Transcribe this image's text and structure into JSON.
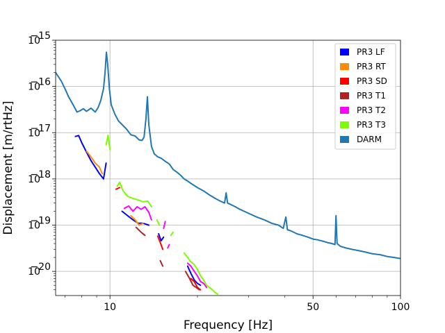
{
  "chart_data": {
    "type": "line",
    "title": "",
    "xlabel": "Frequency [Hz]",
    "ylabel": "Displacement [m/rtHz]",
    "x_scale": "log",
    "y_scale": "log",
    "xlim": [
      6.5,
      100
    ],
    "ylim": [
      3e-21,
      1e-15
    ],
    "grid": true,
    "legend_position": "top-right",
    "x_ticks": [
      {
        "value": 10,
        "label": "10"
      },
      {
        "value": 50,
        "label": "50"
      },
      {
        "value": 100,
        "label": "100"
      }
    ],
    "y_ticks": [
      {
        "value": 1e-20,
        "base": "10",
        "exp": "−20"
      },
      {
        "value": 1e-19,
        "base": "10",
        "exp": "−19"
      },
      {
        "value": 1e-18,
        "base": "10",
        "exp": "−18"
      },
      {
        "value": 1e-17,
        "base": "10",
        "exp": "−17"
      },
      {
        "value": 1e-16,
        "base": "10",
        "exp": "−16"
      },
      {
        "value": 1e-15,
        "base": "10",
        "exp": "−15"
      }
    ],
    "series": [
      {
        "name": "PR3 LF",
        "color": "#0000ff",
        "segments": [
          [
            [
              7.6,
              8.3e-18
            ],
            [
              7.8,
              8.7e-18
            ],
            [
              8.0,
              6e-18
            ],
            [
              8.3,
              3.8e-18
            ],
            [
              8.6,
              2.5e-18
            ],
            [
              8.9,
              1.8e-18
            ],
            [
              9.2,
              1.3e-18
            ],
            [
              9.5,
              1e-18
            ],
            [
              9.7,
              2.2e-18
            ]
          ],
          [
            [
              11.0,
              2e-19
            ],
            [
              11.5,
              1.6e-19
            ],
            [
              12.0,
              1.3e-19
            ],
            [
              12.5,
              1.1e-19
            ],
            [
              13.0,
              1.1e-19
            ],
            [
              13.6,
              1e-19
            ]
          ],
          [
            [
              14.7,
              6.5e-20
            ],
            [
              15.0,
              4.6e-20
            ],
            [
              15.3,
              5.5e-20
            ]
          ],
          [
            [
              18.5,
              1.3e-20
            ],
            [
              19.0,
              9e-21
            ],
            [
              19.5,
              6.5e-21
            ],
            [
              20.0,
              5.5e-21
            ],
            [
              20.5,
              5e-21
            ]
          ]
        ]
      },
      {
        "name": "PR3 RT",
        "color": "#ff8c00",
        "segments": [
          [
            [
              8.3,
              4e-18
            ],
            [
              8.6,
              3e-18
            ],
            [
              8.9,
              2.2e-18
            ],
            [
              9.2,
              1.8e-18
            ],
            [
              9.4,
              1.3e-18
            ]
          ],
          [
            [
              11.8,
              1.6e-19
            ],
            [
              12.2,
              1.3e-19
            ],
            [
              12.6,
              1e-19
            ],
            [
              13.0,
              1.1e-19
            ]
          ]
        ]
      },
      {
        "name": "PR3 SD",
        "color": "#ff0000",
        "segments": [
          [
            [
              10.5,
              6e-19
            ],
            [
              10.8,
              6.5e-19
            ]
          ],
          [
            [
              14.6,
              5.8e-20
            ],
            [
              14.9,
              4.2e-20
            ],
            [
              15.2,
              3e-20
            ]
          ],
          [
            [
              19.0,
              7e-21
            ],
            [
              19.5,
              6e-21
            ],
            [
              20.0,
              4.5e-21
            ],
            [
              20.5,
              4e-21
            ]
          ]
        ]
      },
      {
        "name": "PR3 T1",
        "color": "#b22222",
        "segments": [
          [
            [
              12.3,
              9e-20
            ],
            [
              12.8,
              7e-20
            ],
            [
              13.2,
              6e-20
            ]
          ],
          [
            [
              14.9,
              1.7e-20
            ],
            [
              15.2,
              1.3e-20
            ]
          ],
          [
            [
              18.2,
              1e-20
            ],
            [
              18.8,
              7e-21
            ],
            [
              19.3,
              5e-21
            ],
            [
              19.8,
              4.5e-21
            ],
            [
              20.3,
              4e-21
            ]
          ]
        ]
      },
      {
        "name": "PR3 T2",
        "color": "#ff00ff",
        "segments": [
          [
            [
              11.2,
              2.3e-19
            ],
            [
              11.6,
              2.6e-19
            ],
            [
              12.0,
              2e-19
            ],
            [
              12.4,
              2.5e-19
            ],
            [
              12.8,
              2.2e-19
            ],
            [
              13.2,
              2.5e-19
            ],
            [
              13.6,
              1.9e-19
            ],
            [
              13.9,
              1.3e-19
            ]
          ],
          [
            [
              15.3,
              8.5e-20
            ],
            [
              15.5,
              1.2e-19
            ]
          ],
          [
            [
              15.8,
              3.2e-20
            ],
            [
              16.0,
              3.8e-20
            ]
          ],
          [
            [
              18.5,
              1.5e-20
            ],
            [
              19.0,
              1.3e-20
            ],
            [
              19.5,
              1e-20
            ],
            [
              20.0,
              8e-21
            ],
            [
              20.5,
              6e-21
            ],
            [
              21.0,
              5.5e-21
            ],
            [
              21.5,
              4.5e-21
            ]
          ]
        ]
      },
      {
        "name": "PR3 T3",
        "color": "#7cfc00",
        "segments": [
          [
            [
              9.7,
              5.5e-18
            ],
            [
              9.85,
              8.8e-18
            ],
            [
              10.0,
              4.3e-18
            ]
          ],
          [
            [
              10.6,
              7e-19
            ],
            [
              10.8,
              8.5e-19
            ],
            [
              11.1,
              5.5e-19
            ],
            [
              11.5,
              4.2e-19
            ],
            [
              12.0,
              3.8e-19
            ],
            [
              12.5,
              3.5e-19
            ],
            [
              13.0,
              3.2e-19
            ],
            [
              13.5,
              3.3e-19
            ],
            [
              13.9,
              2.5e-19
            ]
          ],
          [
            [
              14.5,
              1.3e-19
            ],
            [
              14.8,
              1e-19
            ]
          ],
          [
            [
              16.2,
              6e-20
            ],
            [
              16.5,
              7e-20
            ]
          ],
          [
            [
              18.0,
              2.5e-20
            ],
            [
              18.5,
              2e-20
            ],
            [
              19.0,
              1.6e-20
            ],
            [
              19.5,
              1.4e-20
            ],
            [
              20.0,
              1.1e-20
            ],
            [
              20.5,
              8e-21
            ],
            [
              21.0,
              6.5e-21
            ],
            [
              21.5,
              5e-21
            ],
            [
              22.0,
              4.5e-21
            ],
            [
              22.5,
              4e-21
            ],
            [
              23.0,
              3.5e-21
            ],
            [
              23.5,
              3.2e-21
            ]
          ]
        ]
      },
      {
        "name": "DARM",
        "color": "#1f77b4",
        "segments": [
          [
            [
              6.5,
              2e-16
            ],
            [
              6.8,
              1.3e-16
            ],
            [
              7.0,
              9e-17
            ],
            [
              7.2,
              6e-17
            ],
            [
              7.5,
              3.8e-17
            ],
            [
              7.7,
              2.8e-17
            ],
            [
              7.9,
              3e-17
            ],
            [
              8.1,
              3.3e-17
            ],
            [
              8.3,
              2.9e-17
            ],
            [
              8.6,
              3.4e-17
            ],
            [
              8.9,
              2.8e-17
            ],
            [
              9.1,
              3.5e-17
            ],
            [
              9.3,
              5e-17
            ],
            [
              9.5,
              9e-17
            ],
            [
              9.62,
              2e-16
            ],
            [
              9.72,
              5.5e-16
            ],
            [
              9.82,
              3e-16
            ],
            [
              9.95,
              9e-17
            ],
            [
              10.1,
              4e-17
            ],
            [
              10.4,
              2.5e-17
            ],
            [
              10.7,
              1.8e-17
            ],
            [
              11.0,
              1.5e-17
            ],
            [
              11.4,
              1.2e-17
            ],
            [
              11.8,
              9e-18
            ],
            [
              12.2,
              8.5e-18
            ],
            [
              12.6,
              7e-18
            ],
            [
              12.9,
              6.8e-18
            ],
            [
              13.1,
              8e-18
            ],
            [
              13.3,
              2e-17
            ],
            [
              13.45,
              6e-17
            ],
            [
              13.6,
              1.5e-17
            ],
            [
              13.9,
              5e-18
            ],
            [
              14.2,
              3.5e-18
            ],
            [
              14.6,
              3e-18
            ],
            [
              15.0,
              2.8e-18
            ],
            [
              15.5,
              2.4e-18
            ],
            [
              16.0,
              2.1e-18
            ],
            [
              16.5,
              1.6e-18
            ],
            [
              17.0,
              1.4e-18
            ],
            [
              17.5,
              1.2e-18
            ],
            [
              18.0,
              1e-18
            ],
            [
              18.5,
              9e-19
            ],
            [
              19.0,
              8e-19
            ],
            [
              20.0,
              6.5e-19
            ],
            [
              21.0,
              5.5e-19
            ],
            [
              22.0,
              4.5e-19
            ],
            [
              23.0,
              3.8e-19
            ],
            [
              24.0,
              3.3e-19
            ],
            [
              24.8,
              3e-19
            ],
            [
              25.1,
              5e-19
            ],
            [
              25.4,
              3e-19
            ],
            [
              26.0,
              2.8e-19
            ],
            [
              27.0,
              2.5e-19
            ],
            [
              28.0,
              2.2e-19
            ],
            [
              30.0,
              1.8e-19
            ],
            [
              32.0,
              1.5e-19
            ],
            [
              34.0,
              1.3e-19
            ],
            [
              36.0,
              1.1e-19
            ],
            [
              38.0,
              1e-19
            ],
            [
              39.5,
              8.5e-20
            ],
            [
              40.3,
              1.5e-19
            ],
            [
              40.8,
              8e-20
            ],
            [
              42.0,
              7.5e-20
            ],
            [
              44.0,
              6.5e-20
            ],
            [
              46.0,
              6e-20
            ],
            [
              48.0,
              5.5e-20
            ],
            [
              50.0,
              5e-20
            ],
            [
              52.0,
              4.8e-20
            ],
            [
              54.0,
              4.5e-20
            ],
            [
              56.0,
              4.2e-20
            ],
            [
              58.0,
              4e-20
            ],
            [
              59.5,
              3.8e-20
            ],
            [
              59.95,
              1.6e-19
            ],
            [
              60.5,
              4e-20
            ],
            [
              62.0,
              3.5e-20
            ],
            [
              65.0,
              3.2e-20
            ],
            [
              68.0,
              3e-20
            ],
            [
              72.0,
              2.8e-20
            ],
            [
              76.0,
              2.6e-20
            ],
            [
              80.0,
              2.4e-20
            ],
            [
              85.0,
              2.3e-20
            ],
            [
              90.0,
              2.1e-20
            ],
            [
              95.0,
              2e-20
            ],
            [
              100.0,
              1.9e-20
            ]
          ]
        ]
      }
    ]
  }
}
